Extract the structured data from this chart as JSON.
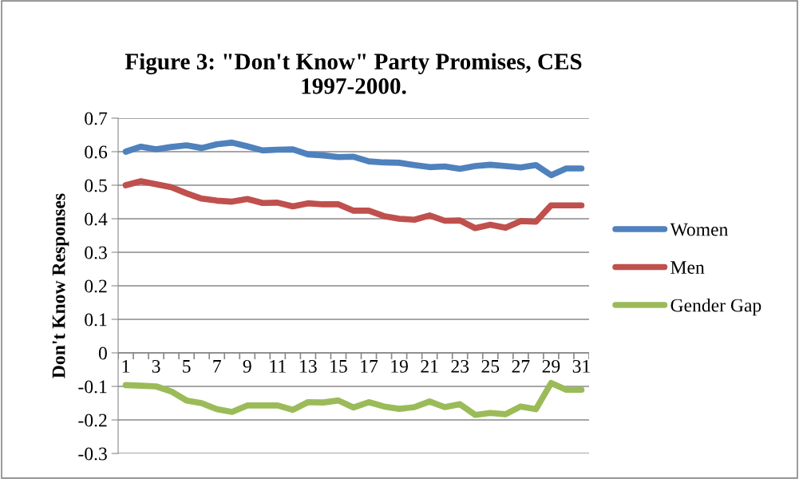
{
  "chart_data": {
    "type": "line",
    "title": "Figure 3: \"Don't Know\" Party Promises, CES\n1997-2000.",
    "ylabel": "Don't Know Responses",
    "categories": [
      "1",
      null,
      "3",
      null,
      "5",
      null,
      "7",
      null,
      "9",
      null,
      "11",
      null,
      "13",
      null,
      "15",
      null,
      "17",
      null,
      "19",
      null,
      "21",
      null,
      "23",
      null,
      "25",
      null,
      "27",
      null,
      "29",
      null,
      "31"
    ],
    "series": [
      {
        "name": "Women",
        "color": "#4f81bd",
        "values": [
          0.6,
          0.615,
          0.607,
          0.614,
          0.619,
          0.611,
          0.622,
          0.627,
          0.616,
          0.604,
          0.606,
          0.607,
          0.592,
          0.589,
          0.584,
          0.585,
          0.571,
          0.568,
          0.567,
          0.56,
          0.554,
          0.556,
          0.549,
          0.557,
          0.561,
          0.557,
          0.553,
          0.56,
          0.53,
          0.55,
          0.55
        ]
      },
      {
        "name": "Men",
        "color": "#c0504d",
        "values": [
          0.5,
          0.512,
          0.503,
          0.494,
          0.476,
          0.46,
          0.454,
          0.451,
          0.459,
          0.447,
          0.448,
          0.437,
          0.446,
          0.443,
          0.443,
          0.424,
          0.424,
          0.408,
          0.4,
          0.397,
          0.41,
          0.394,
          0.395,
          0.372,
          0.382,
          0.373,
          0.393,
          0.391,
          0.44,
          0.44,
          0.44
        ]
      },
      {
        "name": "Gender Gap",
        "color": "#9bbb59",
        "values": [
          -0.096,
          -0.098,
          -0.1,
          -0.115,
          -0.142,
          -0.15,
          -0.168,
          -0.176,
          -0.157,
          -0.157,
          -0.157,
          -0.17,
          -0.147,
          -0.148,
          -0.142,
          -0.163,
          -0.147,
          -0.16,
          -0.167,
          -0.162,
          -0.145,
          -0.162,
          -0.153,
          -0.185,
          -0.179,
          -0.183,
          -0.16,
          -0.168,
          -0.09,
          -0.11,
          -0.11
        ]
      }
    ],
    "ylim": [
      -0.3,
      0.7
    ],
    "yticks": [
      -0.3,
      -0.2,
      -0.1,
      0,
      0.1,
      0.2,
      0.3,
      0.4,
      0.5,
      0.6,
      0.7
    ],
    "grid": "y",
    "legend": "right",
    "marker": "none",
    "line_style": "solid"
  }
}
